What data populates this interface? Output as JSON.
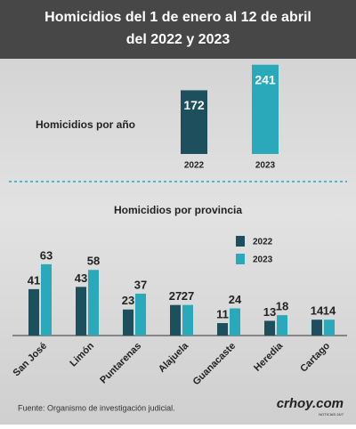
{
  "header": {
    "title": [
      "Homicidios del 1 de enero al 12 de abril",
      "del 2022 y 2023"
    ]
  },
  "chart_data": [
    {
      "type": "bar",
      "title": "Homicidios por año",
      "categories": [
        "2022",
        "2023"
      ],
      "values": [
        172,
        241
      ],
      "colors": [
        "#1d4f5c",
        "#29a9b9"
      ],
      "ylim": [
        0,
        250
      ]
    },
    {
      "type": "grouped-bar",
      "title": "Homicidios por provincia",
      "categories": [
        "San José",
        "Limón",
        "Puntarenas",
        "Alajuela",
        "Guanacaste",
        "Heredia",
        "Cartago"
      ],
      "series": [
        {
          "name": "2022",
          "color": "#1d4f5c",
          "values": [
            41,
            43,
            23,
            27,
            11,
            13,
            14
          ]
        },
        {
          "name": "2023",
          "color": "#29a9b9",
          "values": [
            63,
            58,
            37,
            27,
            24,
            18,
            14
          ]
        }
      ],
      "ylim": [
        0,
        70
      ]
    }
  ],
  "footer": {
    "source": "Fuente: Organismo de investigación judicial.",
    "brand": "crhoy.com",
    "tagline": "NOTICIAS 24/7"
  }
}
